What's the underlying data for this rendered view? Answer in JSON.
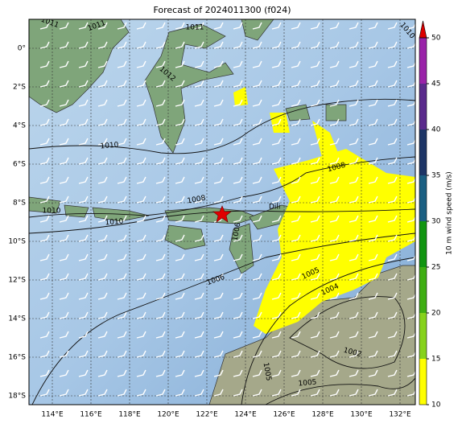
{
  "header": {
    "title": "Forecast of 2024011300 (f024)"
  },
  "map": {
    "lat_labels": [
      "0°",
      "2°S",
      "4°S",
      "6°S",
      "8°S",
      "10°S",
      "12°S",
      "14°S",
      "16°S",
      "18°S"
    ],
    "lon_labels": [
      "114°E",
      "116°E",
      "118°E",
      "120°E",
      "122°E",
      "124°E",
      "126°E",
      "128°E",
      "130°E",
      "132°E"
    ],
    "contour_labels": [
      "1011",
      "1011",
      "1012",
      "1011",
      "1010",
      "1010",
      "1010",
      "1008",
      "1008",
      "1006",
      "1006",
      "1005",
      "1004",
      "1002",
      "1005",
      "1005",
      "1010"
    ],
    "place_labels": [
      "Dili"
    ]
  },
  "colorbar": {
    "label": "10 m wind speed (m/s)",
    "lim": [
      10,
      50
    ],
    "ticks": [
      10,
      15,
      20,
      25,
      30,
      35,
      40,
      45,
      50
    ],
    "colors": [
      "#ffff00",
      "#86d21c",
      "#3fae13",
      "#119511",
      "#1b5f82",
      "#1d3566",
      "#5a2a8c",
      "#9a22a9"
    ],
    "extend_color": "#dd0000"
  }
}
